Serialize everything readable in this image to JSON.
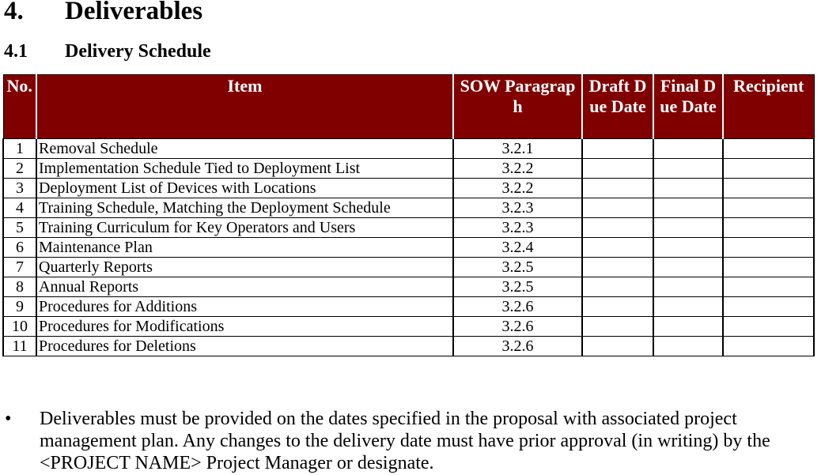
{
  "heading": {
    "number": "4.",
    "title": "Deliverables"
  },
  "subheading": {
    "number": "4.1",
    "title": "Delivery Schedule"
  },
  "table": {
    "header": [
      "No.",
      "Item",
      "SOW Paragraph",
      "Draft Due Date",
      "Final Due Date",
      "Recipient"
    ],
    "rows": [
      [
        "1",
        "Removal Schedule",
        "3.2.1"
      ],
      [
        "2",
        "Implementation Schedule Tied to Deployment List",
        "3.2.2"
      ],
      [
        "3",
        "Deployment List of Devices with Locations",
        "3.2.2"
      ],
      [
        "4",
        "Training Schedule, Matching the Deployment Schedule",
        "3.2.3"
      ],
      [
        "5",
        "Training Curriculum for Key Operators and Users",
        "3.2.3"
      ],
      [
        "6",
        "Maintenance Plan",
        "3.2.4"
      ],
      [
        "7",
        "Quarterly Reports",
        "3.2.5"
      ],
      [
        "8",
        "Annual Reports",
        "3.2.5"
      ],
      [
        "9",
        "Procedures for Additions",
        "3.2.6"
      ],
      [
        "10",
        "Procedures for Modifications",
        "3.2.6"
      ],
      [
        "11",
        "Procedures for Deletions",
        "3.2.6"
      ]
    ]
  },
  "bullets": [
    "Deliverables must be provided on the dates specified in the proposal with associated project management plan. Any changes to the delivery date must have prior approval (in writing) by the <PROJECT NAME> Project Manager or designate."
  ]
}
